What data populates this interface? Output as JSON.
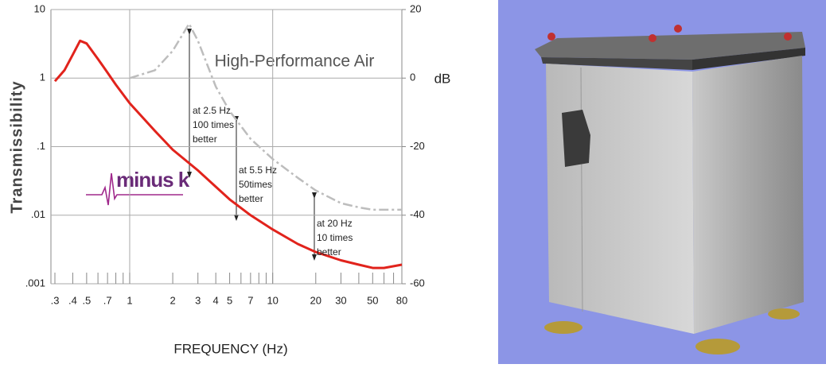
{
  "chart_data": {
    "type": "line",
    "series": [
      {
        "name": "minus k",
        "color": "#e1231c",
        "style": "solid",
        "x": [
          0.3,
          0.35,
          0.4,
          0.45,
          0.5,
          0.6,
          0.7,
          0.8,
          1,
          1.5,
          2,
          3,
          4,
          5,
          7,
          10,
          15,
          20,
          30,
          40,
          50,
          60,
          80
        ],
        "values": [
          0.9,
          1.3,
          2.2,
          3.5,
          3.2,
          1.9,
          1.2,
          0.8,
          0.43,
          0.17,
          0.09,
          0.045,
          0.026,
          0.017,
          0.01,
          0.0062,
          0.0038,
          0.0029,
          0.0022,
          0.0019,
          0.0017,
          0.0017,
          0.0019
        ]
      },
      {
        "name": "High-Performance Air",
        "color": "#bdbdbd",
        "style": "dashdot",
        "x": [
          1,
          1.5,
          2,
          2.6,
          3,
          4,
          5,
          7,
          10,
          15,
          20,
          30,
          40,
          50,
          80
        ],
        "values": [
          1.0,
          1.3,
          2.5,
          6.2,
          3.5,
          0.75,
          0.33,
          0.13,
          0.066,
          0.035,
          0.023,
          0.015,
          0.013,
          0.012,
          0.012
        ]
      }
    ],
    "xlabel": "FREQUENCY (Hz)",
    "ylabel": "Transmissibility",
    "y2label": "dB",
    "xscale": "log",
    "yscale": "log",
    "xlim": [
      0.3,
      80
    ],
    "ylim": [
      0.001,
      10
    ],
    "y2lim": [
      -60,
      20
    ],
    "xticks": [
      {
        "value": 0.3,
        "label": ".3"
      },
      {
        "value": 0.4,
        "label": ".4"
      },
      {
        "value": 0.5,
        "label": ".5"
      },
      {
        "value": 0.7,
        "label": ".7"
      },
      1,
      2,
      3,
      4,
      5,
      7,
      10,
      20,
      30,
      50,
      80
    ],
    "xminorticks": [
      0.6,
      0.8,
      0.9,
      6,
      8,
      9,
      40,
      60,
      70
    ],
    "xgrid": [
      1,
      10
    ],
    "yticks": [
      {
        "value": 0.001,
        "label": ".001"
      },
      {
        "value": 0.01,
        "label": ".01"
      },
      {
        "value": 0.1,
        "label": ".1"
      },
      1,
      10
    ],
    "y2ticks": [
      -60,
      -40,
      -20,
      0,
      20
    ],
    "grid": true,
    "annotations": [
      [
        "at 2.5 Hz",
        "100 times",
        "better"
      ],
      [
        "at 5.5 Hz",
        "50times",
        "better"
      ],
      [
        "at 20 Hz",
        "10 times",
        "better"
      ]
    ]
  }
}
